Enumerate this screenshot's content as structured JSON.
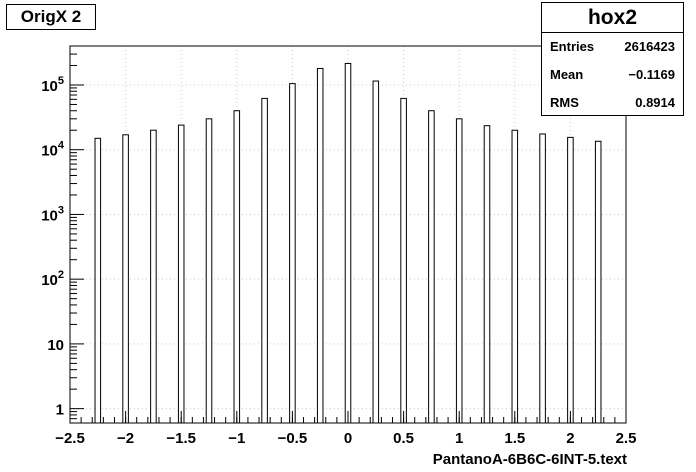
{
  "canvas_title": "OrigX 2",
  "stats": {
    "name": "hox2",
    "rows": [
      {
        "key": "Entries",
        "value": "2616423"
      },
      {
        "key": "Mean",
        "value": "−0.1169"
      },
      {
        "key": "RMS",
        "value": "0.8914"
      }
    ]
  },
  "chart_data": {
    "type": "bar",
    "xlabel": "PantanoA-6B6C-6INT-5.text",
    "ylabel": "",
    "xlim": [
      -2.5,
      2.5
    ],
    "ylim": [
      0.6,
      400000
    ],
    "yscale": "log",
    "grid": true,
    "x_ticks": [
      "−2.5",
      "−2",
      "−1.5",
      "−1",
      "−0.5",
      "0",
      "0.5",
      "1",
      "1.5",
      "2",
      "2.5"
    ],
    "y_ticks": [
      {
        "value": 1,
        "label": "1"
      },
      {
        "value": 10,
        "label": "10"
      },
      {
        "value": 100,
        "base": "10",
        "exp": "2"
      },
      {
        "value": 1000,
        "base": "10",
        "exp": "3"
      },
      {
        "value": 10000,
        "base": "10",
        "exp": "4"
      },
      {
        "value": 100000,
        "base": "10",
        "exp": "5"
      }
    ],
    "x": [
      -2.25,
      -2.0,
      -1.75,
      -1.5,
      -1.25,
      -1.0,
      -0.75,
      -0.5,
      -0.25,
      0.0,
      0.25,
      0.5,
      0.75,
      1.0,
      1.25,
      1.5,
      1.75,
      2.0,
      2.25
    ],
    "values": [
      15000,
      17000,
      20000,
      24000,
      30000,
      40000,
      62000,
      105000,
      180000,
      215000,
      115000,
      62000,
      40000,
      30000,
      23500,
      20000,
      17500,
      15500,
      13500
    ],
    "bar_width": 0.05
  }
}
